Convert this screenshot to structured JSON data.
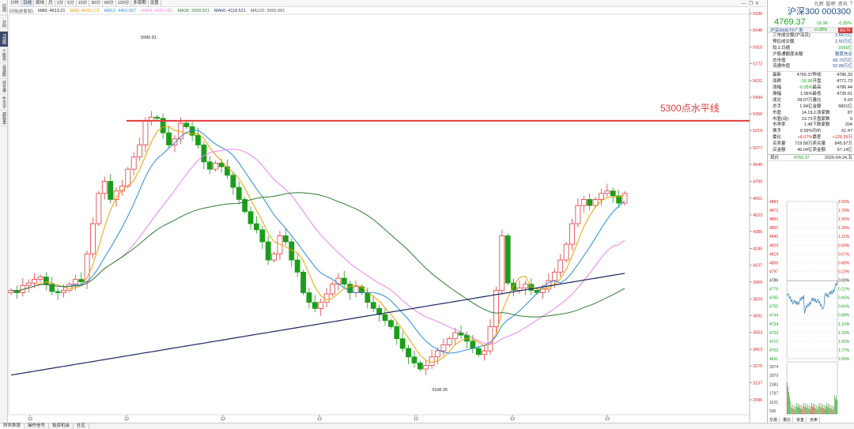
{
  "left_bar": [
    "应用",
    "分时",
    "K线图",
    "个股资料",
    "自选股",
    "综合排名",
    "牛叉诊股",
    "超级盘口"
  ],
  "top_tabs": [
    "分时",
    "日线",
    "周线",
    "月",
    "1分",
    "5分",
    "15分",
    "30分",
    "60分",
    "120分",
    "多周期",
    "设置"
  ],
  "ma_legend": {
    "period": "日线(前复权)",
    "ma5": "MA5: 4613.21",
    "ma8": "MA8: 4632.171",
    "ma12": "MA12: 4461.927",
    "ma24": "MA24: 4250.081",
    "ma36": "MA36: 3939.921",
    "ma60": "MA60: 4118.521",
    "ma120": "MA120: 3995.081"
  },
  "chart": {
    "annotation": "5300点水平线",
    "hline_value": 5300,
    "high_label": "5990.91",
    "low_label": "3108.35",
    "y_ticks": [
      "6186",
      "6048",
      "5910",
      "5772",
      "5631",
      "5494",
      "5356",
      "5219",
      "5077",
      "4940",
      "4799",
      "4661",
      "4523",
      "4386",
      "4245",
      "4107",
      "3969",
      "3829",
      "3691",
      "3553",
      "3413",
      "3275",
      "3137",
      "2996"
    ],
    "x_ticks": [
      "12",
      "12",
      "12",
      "12",
      "12",
      "12",
      "12"
    ],
    "colors": {
      "up": "#e23b3b",
      "down": "#1a9e1a",
      "ma5": "#222222",
      "ma8": "#f0a000",
      "ma12": "#2a8ad8",
      "ma24": "#ee82ee",
      "ma36": "#2e7d32",
      "ma60": "#1a2a5a",
      "hline": "#e23b3b"
    }
  },
  "bottom_tabs": [
    "财务数据",
    "操作信号",
    "投资机会",
    "社区"
  ],
  "right": {
    "window_buttons": [
      "九转",
      "股吧",
      "资讯",
      "?"
    ],
    "name": "沪深300 000300",
    "price": "4769.37",
    "change": "-16.96",
    "change_pct": "-0.35%",
    "etf_name": "沪深300ETF广发",
    "etf_change": "-0.38%",
    "etf_button": "买ETF",
    "info": [
      [
        "三市成交额(沪深京)",
        "2.66万亿"
      ],
      [
        "预估成交额",
        "2.50万亿"
      ],
      [
        "较上日缩",
        "-1656亿"
      ],
      [
        "沪股通额度余额",
        "额度充足"
      ],
      [
        "总市值",
        "68.70万亿"
      ],
      [
        "流通市值",
        "52.88万亿"
      ]
    ],
    "quote": [
      [
        "最新",
        "4769.37",
        "昨收",
        "4786.33"
      ],
      [
        "涨跌",
        "-16.96",
        "开盘",
        "4771.73"
      ],
      [
        "涨幅",
        "-0.35%",
        "最高",
        "4786.44"
      ],
      [
        "振幅",
        "1.06%",
        "最低",
        "4735.61"
      ],
      [
        "成交",
        "28.07万",
        "量比",
        "0.93"
      ],
      [
        "总手",
        "1.94亿",
        "金额",
        "6801亿"
      ],
      [
        "市盈",
        "14.19",
        "上涨家数",
        "87"
      ],
      [
        "市盈(动)",
        "13.75",
        "平盘家数",
        "9"
      ],
      [
        "市净率",
        "1.48",
        "下跌家数",
        "204"
      ],
      [
        "换手",
        "0.59%",
        "均价",
        "61.47"
      ],
      [
        "委比",
        "+8.07%",
        "委差",
        "+126.39万"
      ],
      [
        "买卖量",
        "719.58万",
        "卖买量",
        "845.97万"
      ],
      [
        "买金额",
        "46.04亿",
        "卖金额",
        "57.14亿"
      ]
    ],
    "mini_head": {
      "label": "现价",
      "value": "4769.37",
      "date": "2026-04-24,五"
    },
    "mini_left": [
      "4883",
      "4872",
      "4860",
      "4850",
      "4840",
      "4829",
      "4819",
      "4808",
      "4797",
      "4786",
      "4776",
      "4765",
      "4755",
      "4744",
      "4734",
      "4723",
      "4712",
      "4702",
      "4691"
    ],
    "mini_right": [
      "2.00%",
      "1.79%",
      "1.56%",
      "1.34%",
      "1.12%",
      "0.90%",
      "0.67%",
      "0.45%",
      "0.23%",
      "0.00%",
      "0.21%",
      "0.45%",
      "0.66%",
      "0.88%",
      "1.10%",
      "1.32%",
      "1.55%",
      "1.77%",
      "2.00%"
    ],
    "mini_vol": [
      "3574",
      "2979",
      "2383",
      "1787",
      "1191",
      "596"
    ],
    "mini_tabs": [
      "交易",
      "量比",
      "资金",
      "买卖"
    ]
  }
}
